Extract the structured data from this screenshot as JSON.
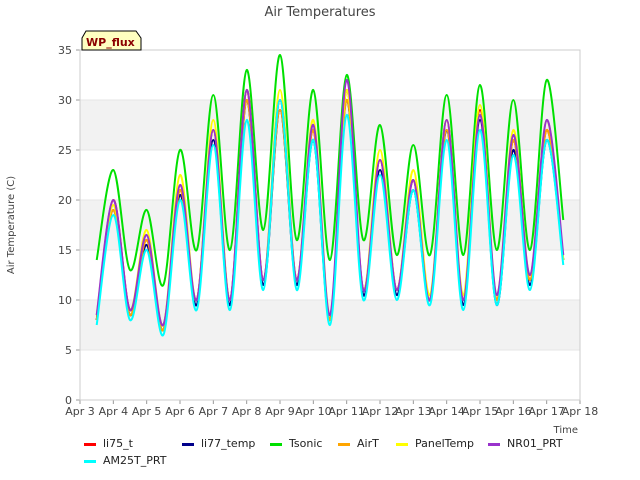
{
  "chart_data": {
    "type": "line",
    "title": "Air Temperatures",
    "xlabel": "Time",
    "ylabel": "Air Temperature (C)",
    "badge": "WP_flux",
    "xlim": [
      "2000-04-03",
      "2000-04-18"
    ],
    "ylim": [
      0,
      35
    ],
    "x_ticks": [
      "Apr 3",
      "Apr 4",
      "Apr 5",
      "Apr 6",
      "Apr 7",
      "Apr 8",
      "Apr 9",
      "Apr 10",
      "Apr 11",
      "Apr 12",
      "Apr 13",
      "Apr 14",
      "Apr 15",
      "Apr 16",
      "Apr 17",
      "Apr 18"
    ],
    "y_ticks": [
      0,
      5,
      10,
      15,
      20,
      25,
      30,
      35
    ],
    "grid": "horizontal bands",
    "legend_position": "bottom",
    "x": [
      "Apr 3 12:00",
      "Apr 4 00:00",
      "Apr 4 12:00",
      "Apr 5 00:00",
      "Apr 5 12:00",
      "Apr 6 00:00",
      "Apr 6 12:00",
      "Apr 7 00:00",
      "Apr 7 12:00",
      "Apr 8 00:00",
      "Apr 8 12:00",
      "Apr 9 00:00",
      "Apr 9 12:00",
      "Apr 10 00:00",
      "Apr 10 12:00",
      "Apr 11 00:00",
      "Apr 11 12:00",
      "Apr 12 00:00",
      "Apr 12 12:00",
      "Apr 13 00:00",
      "Apr 13 12:00",
      "Apr 14 00:00",
      "Apr 14 12:00",
      "Apr 15 00:00",
      "Apr 15 12:00",
      "Apr 16 00:00",
      "Apr 16 12:00",
      "Apr 17 00:00",
      "Apr 17 12:00",
      "Apr 18 00:00"
    ],
    "series": [
      {
        "name": "li75_t",
        "color": "#ff0000",
        "values": [
          8.0,
          20.0,
          9.0,
          16.0,
          7.5,
          21.0,
          10.0,
          27.0,
          10.0,
          31.0,
          12.0,
          30.0,
          12.0,
          27.0,
          8.0,
          31.0,
          11.0,
          24.0,
          11.0,
          22.0,
          10.0,
          28.0,
          10.0,
          29.0,
          10.0,
          26.0,
          12.0,
          27.0,
          14.0,
          null
        ]
      },
      {
        "name": "li77_temp",
        "color": "#00008b",
        "values": [
          8.0,
          19.0,
          8.5,
          15.5,
          7.0,
          20.5,
          9.5,
          26.0,
          9.5,
          30.0,
          11.5,
          29.0,
          11.5,
          26.0,
          8.0,
          30.0,
          10.5,
          23.0,
          10.5,
          21.0,
          10.0,
          27.0,
          9.5,
          28.0,
          9.5,
          25.0,
          11.5,
          26.0,
          14.0,
          null
        ]
      },
      {
        "name": "Tsonic",
        "color": "#00e000",
        "values": [
          14.0,
          23.0,
          13.0,
          19.0,
          11.5,
          25.0,
          15.0,
          30.5,
          15.0,
          33.0,
          17.0,
          34.5,
          16.0,
          31.0,
          14.0,
          32.5,
          16.0,
          27.5,
          14.5,
          25.5,
          14.5,
          30.5,
          14.5,
          31.5,
          15.0,
          30.0,
          15.0,
          32.0,
          18.0,
          null
        ]
      },
      {
        "name": "AirT",
        "color": "#ffa500",
        "values": [
          8.0,
          19.0,
          8.5,
          16.0,
          7.0,
          21.0,
          10.0,
          27.0,
          10.0,
          30.0,
          12.0,
          29.0,
          12.0,
          27.0,
          8.0,
          30.0,
          11.0,
          24.0,
          11.0,
          22.0,
          10.0,
          27.0,
          10.0,
          28.5,
          10.0,
          26.0,
          12.0,
          27.0,
          14.0,
          null
        ]
      },
      {
        "name": "PanelTemp",
        "color": "#ffff00",
        "values": [
          8.5,
          19.5,
          9.0,
          17.0,
          7.5,
          22.5,
          10.0,
          28.0,
          10.0,
          31.0,
          12.0,
          31.0,
          12.0,
          28.0,
          8.5,
          31.0,
          11.0,
          25.0,
          11.0,
          23.0,
          10.5,
          28.0,
          10.5,
          29.5,
          10.5,
          27.0,
          12.5,
          28.0,
          14.0,
          null
        ]
      },
      {
        "name": "NR01_PRT",
        "color": "#9932cc",
        "values": [
          8.5,
          20.0,
          9.0,
          16.5,
          7.5,
          21.5,
          10.0,
          27.0,
          10.0,
          31.0,
          12.0,
          30.0,
          12.0,
          27.5,
          8.5,
          32.0,
          11.0,
          24.0,
          11.0,
          22.0,
          10.0,
          28.0,
          10.0,
          28.5,
          10.5,
          26.5,
          12.5,
          28.0,
          14.5,
          null
        ]
      },
      {
        "name": "AM25T_PRT",
        "color": "#00ffff",
        "values": [
          7.5,
          18.5,
          8.0,
          15.0,
          6.5,
          20.0,
          9.0,
          25.5,
          9.0,
          28.0,
          11.0,
          30.0,
          11.0,
          26.0,
          7.5,
          28.5,
          10.0,
          22.5,
          10.0,
          21.0,
          9.5,
          26.0,
          9.0,
          27.0,
          9.5,
          24.5,
          11.0,
          26.0,
          13.5,
          null
        ]
      }
    ]
  }
}
